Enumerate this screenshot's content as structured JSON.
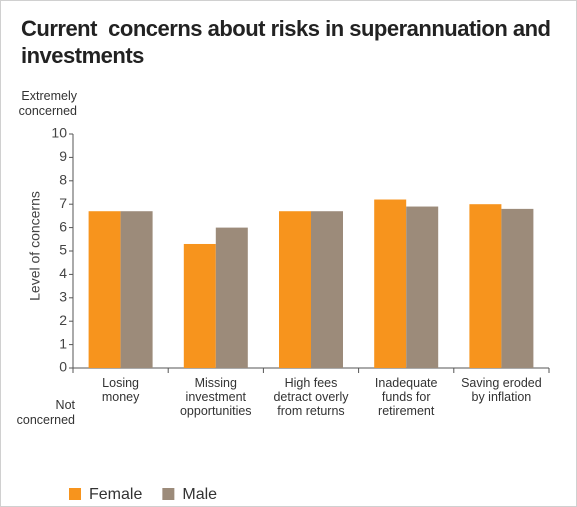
{
  "chart_data": {
    "type": "bar",
    "title": "Current  concerns about risks in superannuation and investments",
    "y_label": "Level of concerns",
    "annotations": [
      "Extremely\nconcerned",
      "Not\nconcerned"
    ],
    "categories": [
      "Losing\nmoney",
      "Missing\ninvestment\nopportunities",
      "High fees\ndetract overly\nfrom returns",
      "Inadequate\nfunds for\nretirement",
      "Saving eroded\nby inflation"
    ],
    "series": [
      {
        "name": "Female",
        "color": "#f7941d",
        "values": [
          6.7,
          5.3,
          6.7,
          7.2,
          7.0
        ]
      },
      {
        "name": "Male",
        "color": "#9c8b7a",
        "values": [
          6.7,
          6.0,
          6.7,
          6.9,
          6.8
        ]
      }
    ],
    "ylim": [
      0,
      10
    ],
    "yticks": [
      0,
      1,
      2,
      3,
      4,
      5,
      6,
      7,
      8,
      9,
      10
    ],
    "legend": "bottom"
  }
}
